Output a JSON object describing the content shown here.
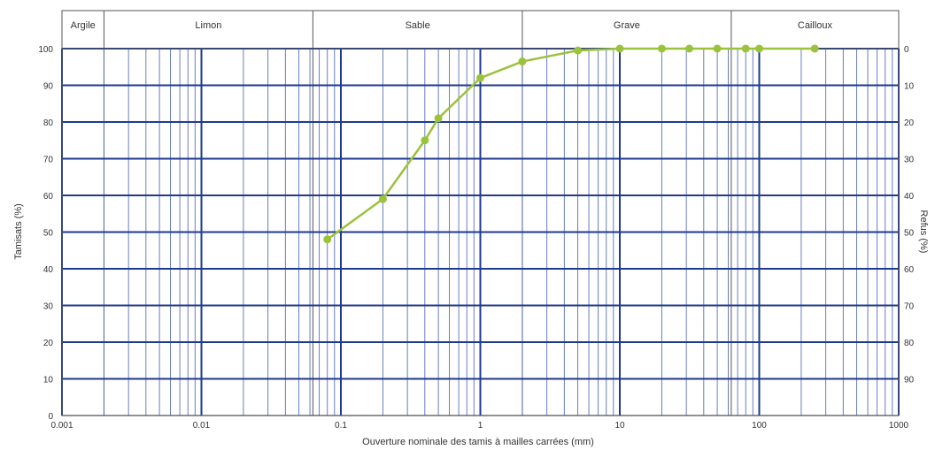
{
  "colors": {
    "grid_major": "#1f3a8f",
    "grid_minor": "#5a6fb5",
    "series": "#9bc23c",
    "frame": "#555555"
  },
  "chart_data": {
    "type": "line",
    "xscale": "log",
    "xlim": [
      0.001,
      1000
    ],
    "ylim": [
      0,
      100
    ],
    "xlabel": "Ouverture nominale des tamis à mailles carrées (mm)",
    "ylabel": "Tamisats (%)",
    "y2label": "Refus (%)",
    "x_ticks": [
      "0.001",
      "0.01",
      "0.1",
      "1",
      "10",
      "100",
      "1000"
    ],
    "y_ticks": [
      "0",
      "10",
      "20",
      "30",
      "40",
      "50",
      "60",
      "70",
      "80",
      "90",
      "100"
    ],
    "y2_ticks": [
      "0",
      "10",
      "20",
      "30",
      "40",
      "50",
      "60",
      "70",
      "80",
      "90"
    ],
    "grid": true,
    "bands": [
      {
        "label": "Argile",
        "from": 0.001,
        "to": 0.002
      },
      {
        "label": "Limon",
        "from": 0.002,
        "to": 0.063
      },
      {
        "label": "Sable",
        "from": 0.063,
        "to": 2
      },
      {
        "label": "Grave",
        "from": 2,
        "to": 63
      },
      {
        "label": "Cailloux",
        "from": 63,
        "to": 1000
      }
    ],
    "series": [
      {
        "x": [
          0.08,
          0.2,
          0.4,
          0.5,
          1,
          2,
          5,
          10,
          20,
          31.5,
          50,
          80,
          100,
          250
        ],
        "y": [
          48,
          59,
          75,
          81,
          92,
          96.5,
          99.5,
          100,
          100,
          100,
          100,
          100,
          100,
          100
        ]
      }
    ]
  }
}
